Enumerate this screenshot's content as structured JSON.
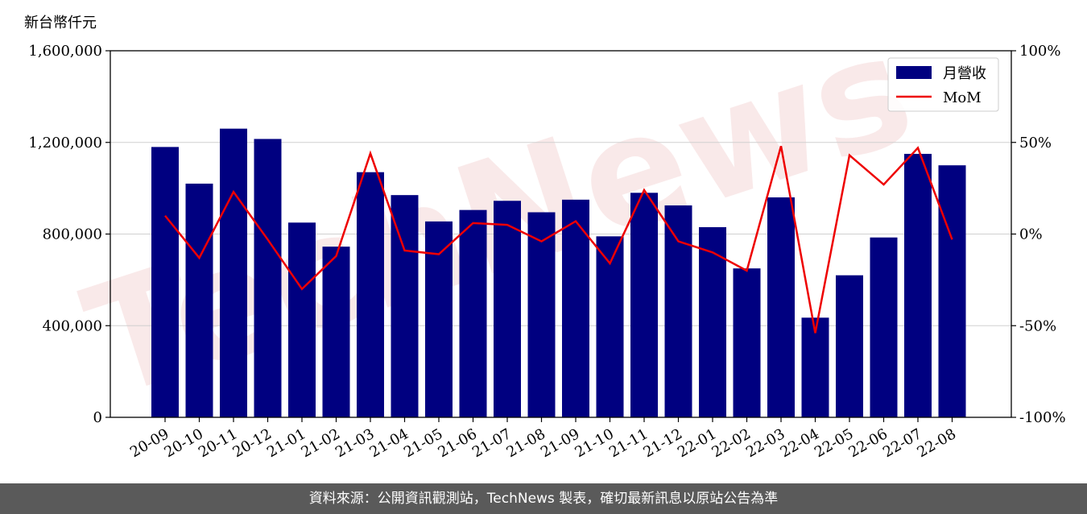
{
  "unit_label": "新台幣仟元",
  "footer_text": "資料來源：公開資訊觀測站，TechNews 製表，確切最新訊息以原站公告為準",
  "watermark_text": "TechNews",
  "colors": {
    "bar": "#000080",
    "line": "#ee0000",
    "grid": "#d0d0d0",
    "footer_bg": "#5a5a5a"
  },
  "chart_data": {
    "type": "bar",
    "categories": [
      "20-09",
      "20-10",
      "20-11",
      "20-12",
      "21-01",
      "21-02",
      "21-03",
      "21-04",
      "21-05",
      "21-06",
      "21-07",
      "21-08",
      "21-09",
      "21-10",
      "21-11",
      "21-12",
      "22-01",
      "22-02",
      "22-03",
      "22-04",
      "22-05",
      "22-06",
      "22-07",
      "22-08"
    ],
    "series": [
      {
        "name": "月營收",
        "type": "bar",
        "axis": "left",
        "values": [
          1180000,
          1020000,
          1260000,
          1215000,
          850000,
          745000,
          1070000,
          970000,
          855000,
          905000,
          945000,
          895000,
          950000,
          790000,
          980000,
          925000,
          830000,
          650000,
          960000,
          435000,
          620000,
          785000,
          1150000,
          1100000
        ]
      },
      {
        "name": "MoM",
        "type": "line",
        "axis": "right",
        "values": [
          10,
          -13,
          23,
          -3,
          -30,
          -12,
          44,
          -9,
          -11,
          6,
          5,
          -4,
          7,
          -16,
          24,
          -4,
          -10,
          -20,
          48,
          -54,
          43,
          27,
          47,
          -3
        ]
      }
    ],
    "y_left": {
      "range": [
        0,
        1600000
      ],
      "ticks": [
        0,
        400000,
        800000,
        1200000,
        1600000
      ],
      "tick_labels": [
        "0",
        "400,000",
        "800,000",
        "1,200,000",
        "1,600,000"
      ]
    },
    "y_right": {
      "range": [
        -100,
        100
      ],
      "ticks": [
        -100,
        -50,
        0,
        50,
        100
      ],
      "tick_labels": [
        "-100%",
        "-50%",
        "0%",
        "50%",
        "100%"
      ]
    },
    "grid": "horizontal",
    "legend_position": "top-right",
    "title": "",
    "xlabel": "",
    "ylabel": ""
  }
}
